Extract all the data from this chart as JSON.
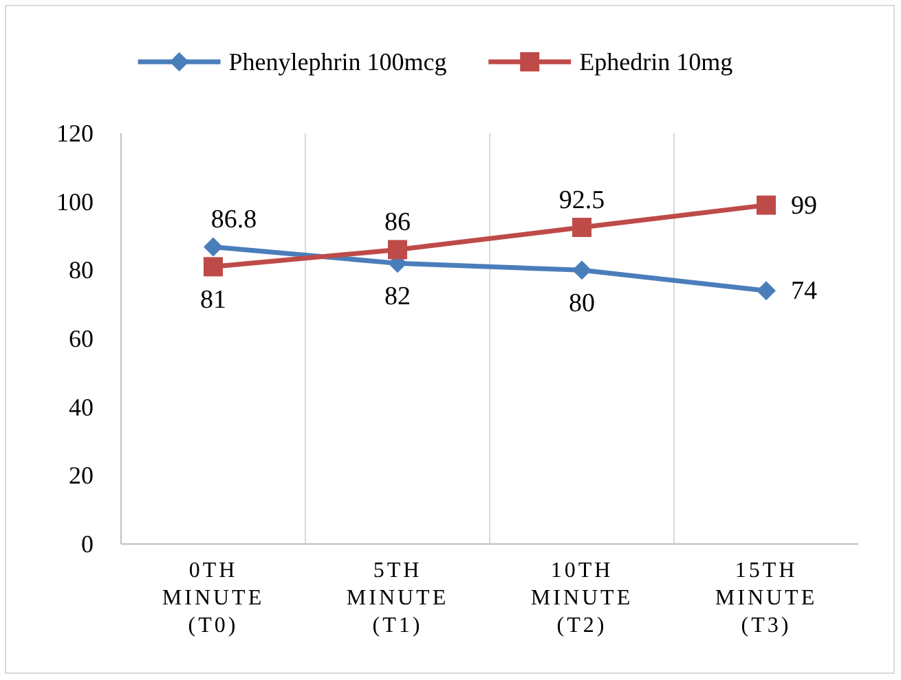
{
  "chart_data": {
    "type": "line",
    "categories": [
      "0TH MINUTE (T0)",
      "5TH MINUTE (T1)",
      "10TH MINUTE (T2)",
      "15TH MINUTE (T3)"
    ],
    "series": [
      {
        "name": "Phenylephrin 100mcg",
        "color": "#4a7ebb",
        "values": [
          86.8,
          82,
          80,
          74
        ],
        "marker": "diamond"
      },
      {
        "name": "Ephedrin 10mg",
        "color": "#be4b48",
        "values": [
          81,
          86,
          92.5,
          99
        ],
        "marker": "square"
      }
    ],
    "ylim": [
      0,
      120
    ],
    "yticks": [
      0,
      20,
      40,
      60,
      80,
      100,
      120
    ],
    "grid": "x",
    "legend": "top",
    "data_labels": true
  }
}
